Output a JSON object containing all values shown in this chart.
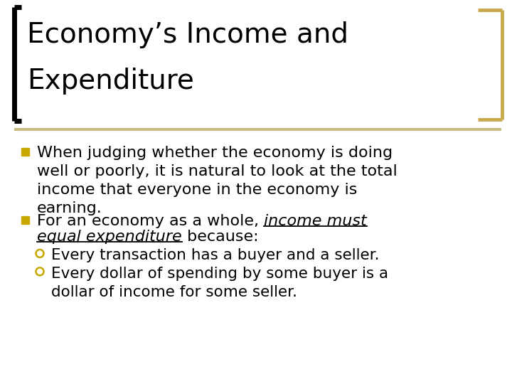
{
  "title_line1": "Economy’s Income and",
  "title_line2": "Expenditure",
  "title_fontsize": 28,
  "body_fontsize": 16,
  "sub_fontsize": 15.5,
  "title_color": "#000000",
  "title_bar_color": "#C8BC82",
  "bracket_color": "#C9A84C",
  "background_color": "#FFFFFF",
  "bullet_color": "#C8A800",
  "bullet1": "When judging whether the economy is doing\nwell or poorly, it is natural to look at the total\nincome that everyone in the economy is\nearning.",
  "bullet2_pre": "For an economy as a whole, ",
  "bullet2_italic1": "income must",
  "bullet2_italic2": "equal expenditure",
  "bullet2_post": " because:",
  "sub_bullet1": "Every transaction has a buyer and a seller.",
  "sub_bullet2": "Every dollar of spending by some buyer is a\ndollar of income for some seller."
}
